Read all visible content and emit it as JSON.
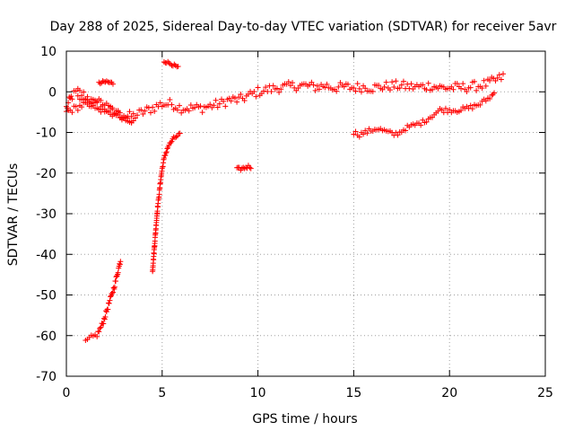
{
  "chart_data": {
    "type": "scatter",
    "title": "Day 288 of 2025, Sidereal Day-to-day VTEC variation (SDTVAR) for receiver 5avr",
    "xlabel": "GPS time / hours",
    "ylabel": "SDTVAR / TECUs",
    "xlim": [
      0,
      25
    ],
    "ylim": [
      -70,
      10
    ],
    "xticks": [
      0,
      5,
      10,
      15,
      20,
      25
    ],
    "yticks": [
      -70,
      -60,
      -50,
      -40,
      -30,
      -20,
      -10,
      0,
      10
    ],
    "grid": true,
    "marker": "plus",
    "series": [
      {
        "name": "SDTVAR",
        "color": "#ff0000",
        "segments": [
          {
            "label": "main-upper-trace",
            "x": [
              0,
              0.3,
              0.6,
              1.0,
              1.5,
              2.0,
              2.5,
              3.0,
              3.5,
              4.0,
              4.5,
              5.0,
              5.5,
              6.0,
              6.5,
              7.0,
              7.5,
              8.0,
              8.5,
              9.0,
              9.5,
              10.0,
              10.5,
              11.0,
              11.5,
              12.0,
              12.5,
              13.0,
              13.5,
              14.0,
              14.5,
              15.0,
              15.5,
              16.0,
              16.5,
              17.0,
              17.5,
              18.0,
              18.5,
              19.0,
              19.5,
              20.0,
              20.5,
              21.0,
              21.5,
              22.0,
              22.5,
              22.9
            ],
            "y": [
              -4,
              -1,
              0,
              -1,
              -3,
              -4,
              -5,
              -6,
              -6,
              -5,
              -4,
              -3,
              -3,
              -4,
              -4,
              -4,
              -3.5,
              -3,
              -2,
              -2,
              -1,
              0,
              0.5,
              1,
              1.2,
              1.5,
              1.5,
              1.2,
              1.5,
              1.0,
              1.2,
              1.0,
              1.2,
              1.0,
              1.2,
              1.5,
              1.5,
              1.2,
              1.2,
              1.5,
              1.0,
              1.0,
              1.0,
              1.2,
              1.5,
              2.0,
              3.0,
              4.0
            ],
            "spread": 1.2
          },
          {
            "label": "lower-crossing-trace",
            "x": [
              0,
              0.5,
              1.0,
              1.5,
              2.0,
              2.5,
              3.0,
              3.5
            ],
            "y": [
              -5,
              -4,
              -3,
              -2,
              -3,
              -5,
              -6,
              -8
            ],
            "spread": 0.8
          },
          {
            "label": "arc-early-morning",
            "x": [
              0.6,
              0.9,
              1.2,
              1.5,
              1.8,
              2.1,
              2.4,
              2.7,
              3.0,
              3.3,
              3.6
            ],
            "y": [
              -1,
              -2,
              -3,
              -4,
              -4.5,
              -5,
              -5.5,
              -6,
              -6.5,
              -7,
              -7.5
            ],
            "spread": 0.6
          },
          {
            "label": "short-segment-near-2h",
            "x": [
              1.7,
              1.9,
              2.1,
              2.3,
              2.5
            ],
            "y": [
              2,
              2.3,
              2.5,
              2.2,
              2
            ],
            "spread": 0.4
          },
          {
            "label": "short-segment-near-5h",
            "x": [
              5.1,
              5.3,
              5.5,
              5.7,
              5.9
            ],
            "y": [
              7.5,
              7.2,
              6.8,
              6.3,
              5.8
            ],
            "spread": 0.3
          },
          {
            "label": "steep-rise-1h",
            "x": [
              1.0,
              1.3,
              1.6,
              1.9,
              2.1,
              2.3,
              2.5,
              2.7,
              2.85
            ],
            "y": [
              -61.5,
              -60.5,
              -59.8,
              -57,
              -54,
              -51,
              -48,
              -44,
              -41
            ],
            "spread": 0.6
          },
          {
            "label": "steep-rise-4h",
            "x": [
              4.5,
              4.55,
              4.6,
              4.65,
              4.7,
              4.75,
              4.8,
              4.85,
              4.9,
              5.0,
              5.1,
              5.2,
              5.3,
              5.45,
              5.6,
              5.8,
              6.0
            ],
            "y": [
              -44,
              -41,
              -38,
              -35,
              -32,
              -29,
              -27,
              -25,
              -22.5,
              -19,
              -16.5,
              -15,
              -13.5,
              -12.5,
              -11.5,
              -10.8,
              -10
            ],
            "spread": 0.4
          },
          {
            "label": "segment-near-9h",
            "x": [
              8.9,
              9.1,
              9.3,
              9.5,
              9.7
            ],
            "y": [
              -19,
              -19,
              -18.7,
              -18.4,
              -18.6
            ],
            "spread": 0.4
          },
          {
            "label": "afternoon-lower-trace",
            "x": [
              15.0,
              15.3,
              15.6,
              15.9,
              16.2,
              16.5,
              16.8,
              17.1,
              17.4,
              17.7,
              18.0,
              18.3,
              18.6,
              18.9,
              19.2,
              19.5,
              19.8,
              20.1,
              20.4,
              20.7,
              21.0,
              21.3,
              21.6,
              21.9,
              22.2,
              22.4
            ],
            "y": [
              -10,
              -10.5,
              -10,
              -9.5,
              -9,
              -9.5,
              -10,
              -10.5,
              -10,
              -9,
              -8.5,
              -8,
              -7.5,
              -6.5,
              -5.5,
              -4.5,
              -4.5,
              -4.5,
              -4.5,
              -4.3,
              -4.0,
              -3.5,
              -3.0,
              -2.0,
              -1.0,
              0
            ],
            "spread": 0.6
          }
        ]
      }
    ]
  }
}
